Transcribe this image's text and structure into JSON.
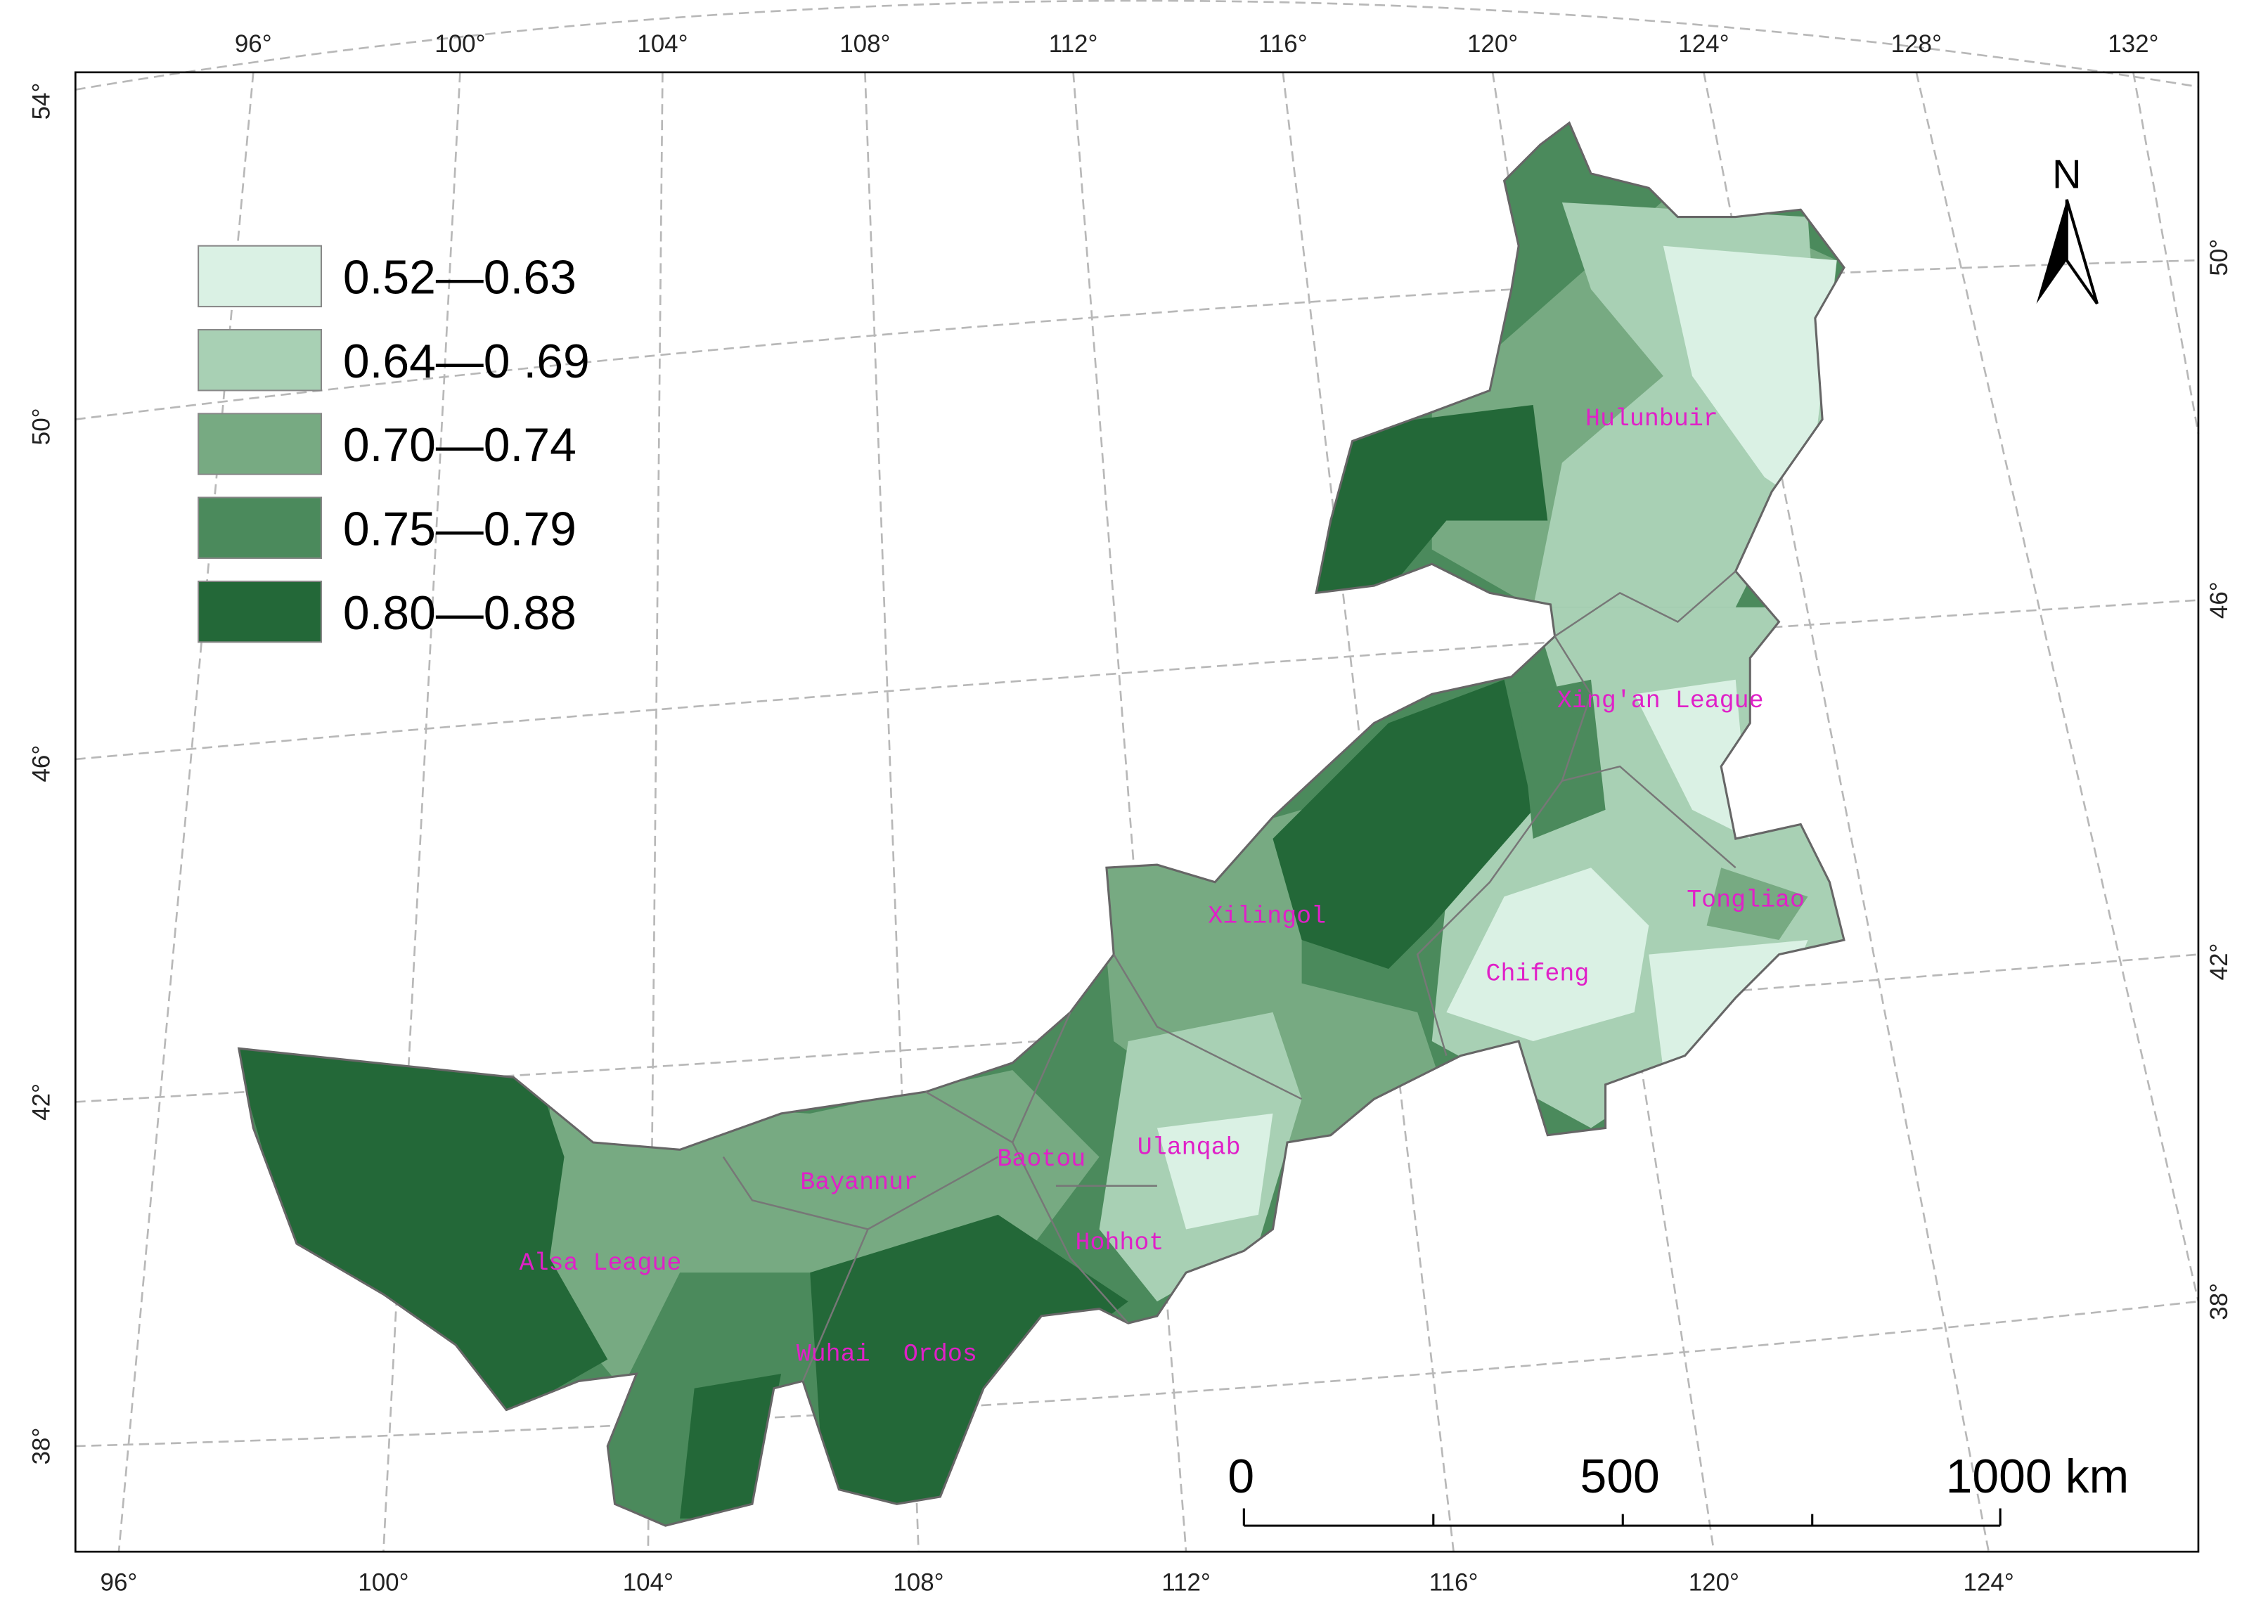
{
  "legend": [
    {
      "label": "0.52—0.63",
      "color": "#daf1e4"
    },
    {
      "label": "0.64—0 .69",
      "color": "#a8d0b4"
    },
    {
      "label": "0.70—0.74",
      "color": "#77aa82"
    },
    {
      "label": "0.75—0.79",
      "color": "#4b8a5c"
    },
    {
      "label": "0.80—0.88",
      "color": "#236838"
    }
  ],
  "regions": [
    "Hulunbuir",
    "Xing'an League",
    "Tongliao",
    "Chifeng",
    "Xilingol",
    "Ulanqab",
    "Baotou",
    "Bayannur",
    "Hohhot",
    "Alsa League",
    "Wuhai",
    "Ordos"
  ],
  "graticule": {
    "top": [
      "96°",
      "100°",
      "104°",
      "108°",
      "112°",
      "116°",
      "120°",
      "124°",
      "128°",
      "132°"
    ],
    "bottom": [
      "96°",
      "100°",
      "104°",
      "108°",
      "112°",
      "116°",
      "120°",
      "124°"
    ],
    "left": [
      "54°",
      "50°",
      "46°",
      "42°",
      "38°"
    ],
    "right": [
      "50°",
      "46°",
      "42°",
      "38°"
    ]
  },
  "north_arrow": "N",
  "scale_bar": {
    "ticks": [
      "0",
      "500",
      "1000"
    ],
    "unit": "km"
  }
}
